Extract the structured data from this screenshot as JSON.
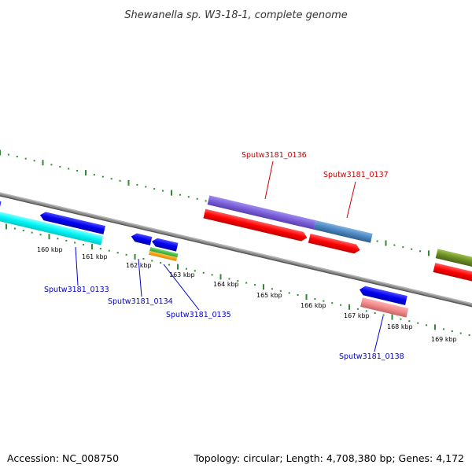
{
  "title": "Shewanella sp. W3-18-1, complete genome",
  "footer": {
    "accession": "Accession: NC_008750",
    "topology": "Topology: circular; Length: 4,708,380 bp; Genes: 4,172"
  },
  "colors": {
    "backbone": "#7f7f7f",
    "ticks": "#2e8b2e",
    "forward_gene": "#0000ff",
    "label_forward": "#0000cc",
    "label_reverse": "#cc0000",
    "reverse_gene": "#ff0000"
  },
  "scale": {
    "tick_labels": [
      "160 kbp",
      "161 kbp",
      "162 kbp",
      "163 kbp",
      "164 kbp",
      "165 kbp",
      "166 kbp",
      "167 kbp",
      "168 kbp",
      "169 kbp"
    ]
  },
  "genes": [
    {
      "label": "Sputw3181_0133",
      "color": "#0000cc"
    },
    {
      "label": "Sputw3181_0134",
      "color": "#0000cc"
    },
    {
      "label": "Sputw3181_0135",
      "color": "#0000cc"
    },
    {
      "label": "Sputw3181_0136",
      "color": "#cc0000"
    },
    {
      "label": "Sputw3181_0137",
      "color": "#cc0000"
    },
    {
      "label": "Sputw3181_0138",
      "color": "#0000cc"
    }
  ]
}
